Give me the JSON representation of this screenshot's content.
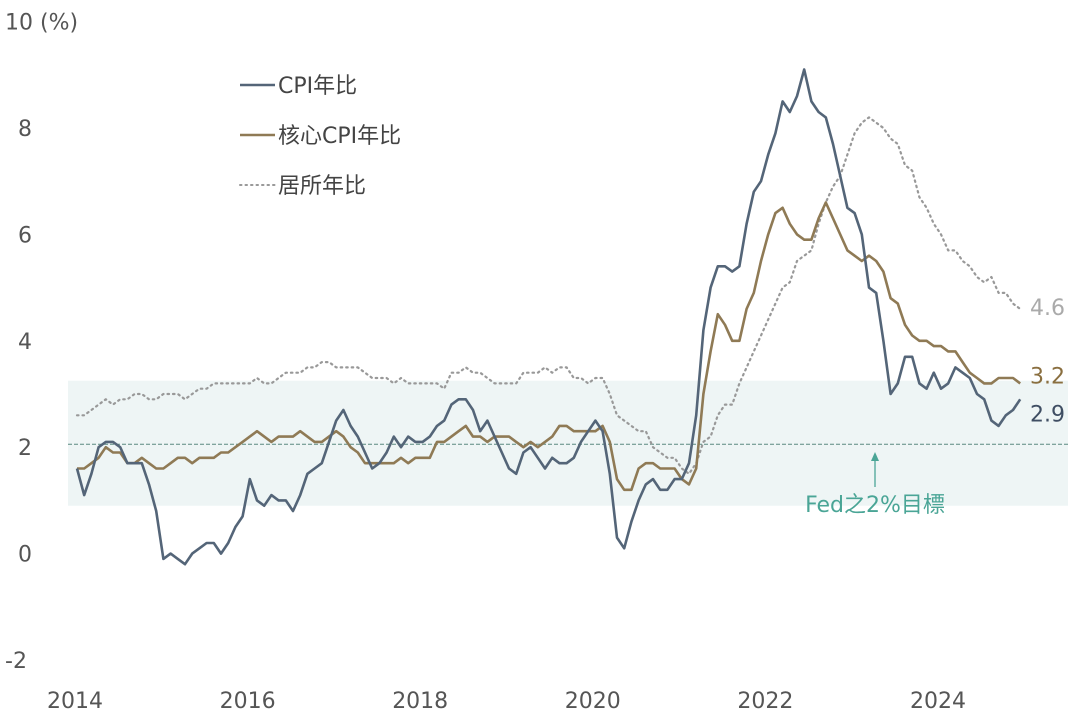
{
  "chart_data": {
    "type": "line",
    "ylabel": "(%)",
    "ylim": [
      -2,
      10
    ],
    "yticks": [
      "-2",
      "0",
      "2",
      "4",
      "6",
      "8",
      "10"
    ],
    "xticks": [
      "2014",
      "2016",
      "2018",
      "2020",
      "2022",
      "2024"
    ],
    "x_start": "2014-01",
    "x_end": "2024-12",
    "frequency": "monthly",
    "grid": false,
    "legend_placement": "top-left",
    "target_band": [
      0.9,
      3.25
    ],
    "target_line": 2,
    "annotation": "Fed之2%目標",
    "series": [
      {
        "name": "CPI年比",
        "color": "#546578",
        "style": "solid",
        "end_label": "2.9",
        "values": [
          1.6,
          1.1,
          1.5,
          2.0,
          2.1,
          2.1,
          2.0,
          1.7,
          1.7,
          1.7,
          1.3,
          0.8,
          -0.1,
          0.0,
          -0.1,
          -0.2,
          0.0,
          0.1,
          0.2,
          0.2,
          0.0,
          0.2,
          0.5,
          0.7,
          1.4,
          1.0,
          0.9,
          1.1,
          1.0,
          1.0,
          0.8,
          1.1,
          1.5,
          1.6,
          1.7,
          2.1,
          2.5,
          2.7,
          2.4,
          2.2,
          1.9,
          1.6,
          1.7,
          1.9,
          2.2,
          2.0,
          2.2,
          2.1,
          2.1,
          2.2,
          2.4,
          2.5,
          2.8,
          2.9,
          2.9,
          2.7,
          2.3,
          2.5,
          2.2,
          1.9,
          1.6,
          1.5,
          1.9,
          2.0,
          1.8,
          1.6,
          1.8,
          1.7,
          1.7,
          1.8,
          2.1,
          2.3,
          2.5,
          2.3,
          1.5,
          0.3,
          0.1,
          0.6,
          1.0,
          1.3,
          1.4,
          1.2,
          1.2,
          1.4,
          1.4,
          1.7,
          2.6,
          4.2,
          5.0,
          5.4,
          5.4,
          5.3,
          5.4,
          6.2,
          6.8,
          7.0,
          7.5,
          7.9,
          8.5,
          8.3,
          8.6,
          9.1,
          8.5,
          8.3,
          8.2,
          7.7,
          7.1,
          6.5,
          6.4,
          6.0,
          5.0,
          4.9,
          4.0,
          3.0,
          3.2,
          3.7,
          3.7,
          3.2,
          3.1,
          3.4,
          3.1,
          3.2,
          3.5,
          3.4,
          3.3,
          3.0,
          2.9,
          2.5,
          2.4,
          2.6,
          2.7,
          2.9
        ]
      },
      {
        "name": "核心CPI年比",
        "color": "#8f7a55",
        "style": "solid",
        "end_label": "3.2",
        "values": [
          1.6,
          1.6,
          1.7,
          1.8,
          2.0,
          1.9,
          1.9,
          1.7,
          1.7,
          1.8,
          1.7,
          1.6,
          1.6,
          1.7,
          1.8,
          1.8,
          1.7,
          1.8,
          1.8,
          1.8,
          1.9,
          1.9,
          2.0,
          2.1,
          2.2,
          2.3,
          2.2,
          2.1,
          2.2,
          2.2,
          2.2,
          2.3,
          2.2,
          2.1,
          2.1,
          2.2,
          2.3,
          2.2,
          2.0,
          1.9,
          1.7,
          1.7,
          1.7,
          1.7,
          1.7,
          1.8,
          1.7,
          1.8,
          1.8,
          1.8,
          2.1,
          2.1,
          2.2,
          2.3,
          2.4,
          2.2,
          2.2,
          2.1,
          2.2,
          2.2,
          2.2,
          2.1,
          2.0,
          2.1,
          2.0,
          2.1,
          2.2,
          2.4,
          2.4,
          2.3,
          2.3,
          2.3,
          2.3,
          2.4,
          2.1,
          1.4,
          1.2,
          1.2,
          1.6,
          1.7,
          1.7,
          1.6,
          1.6,
          1.6,
          1.4,
          1.3,
          1.6,
          3.0,
          3.8,
          4.5,
          4.3,
          4.0,
          4.0,
          4.6,
          4.9,
          5.5,
          6.0,
          6.4,
          6.5,
          6.2,
          6.0,
          5.9,
          5.9,
          6.3,
          6.6,
          6.3,
          6.0,
          5.7,
          5.6,
          5.5,
          5.6,
          5.5,
          5.3,
          4.8,
          4.7,
          4.3,
          4.1,
          4.0,
          4.0,
          3.9,
          3.9,
          3.8,
          3.8,
          3.6,
          3.4,
          3.3,
          3.2,
          3.2,
          3.3,
          3.3,
          3.3,
          3.2
        ]
      },
      {
        "name": "居所年比",
        "color": "#999999",
        "style": "dotted",
        "end_label": "4.6",
        "values": [
          2.6,
          2.6,
          2.7,
          2.8,
          2.9,
          2.8,
          2.9,
          2.9,
          3.0,
          3.0,
          2.9,
          2.9,
          3.0,
          3.0,
          3.0,
          2.9,
          3.0,
          3.1,
          3.1,
          3.2,
          3.2,
          3.2,
          3.2,
          3.2,
          3.2,
          3.3,
          3.2,
          3.2,
          3.3,
          3.4,
          3.4,
          3.4,
          3.5,
          3.5,
          3.6,
          3.6,
          3.5,
          3.5,
          3.5,
          3.5,
          3.4,
          3.3,
          3.3,
          3.3,
          3.2,
          3.3,
          3.2,
          3.2,
          3.2,
          3.2,
          3.2,
          3.1,
          3.4,
          3.4,
          3.5,
          3.4,
          3.4,
          3.3,
          3.2,
          3.2,
          3.2,
          3.2,
          3.4,
          3.4,
          3.4,
          3.5,
          3.4,
          3.5,
          3.5,
          3.3,
          3.3,
          3.2,
          3.3,
          3.3,
          3.0,
          2.6,
          2.5,
          2.4,
          2.3,
          2.3,
          2.0,
          1.9,
          1.8,
          1.8,
          1.6,
          1.5,
          1.7,
          2.1,
          2.2,
          2.6,
          2.8,
          2.8,
          3.2,
          3.5,
          3.8,
          4.1,
          4.4,
          4.7,
          5.0,
          5.1,
          5.5,
          5.6,
          5.7,
          6.2,
          6.6,
          6.9,
          7.1,
          7.5,
          7.9,
          8.1,
          8.2,
          8.1,
          8.0,
          7.8,
          7.7,
          7.3,
          7.2,
          6.7,
          6.5,
          6.2,
          6.0,
          5.7,
          5.7,
          5.5,
          5.4,
          5.2,
          5.1,
          5.2,
          4.9,
          4.9,
          4.7,
          4.6
        ]
      }
    ]
  }
}
